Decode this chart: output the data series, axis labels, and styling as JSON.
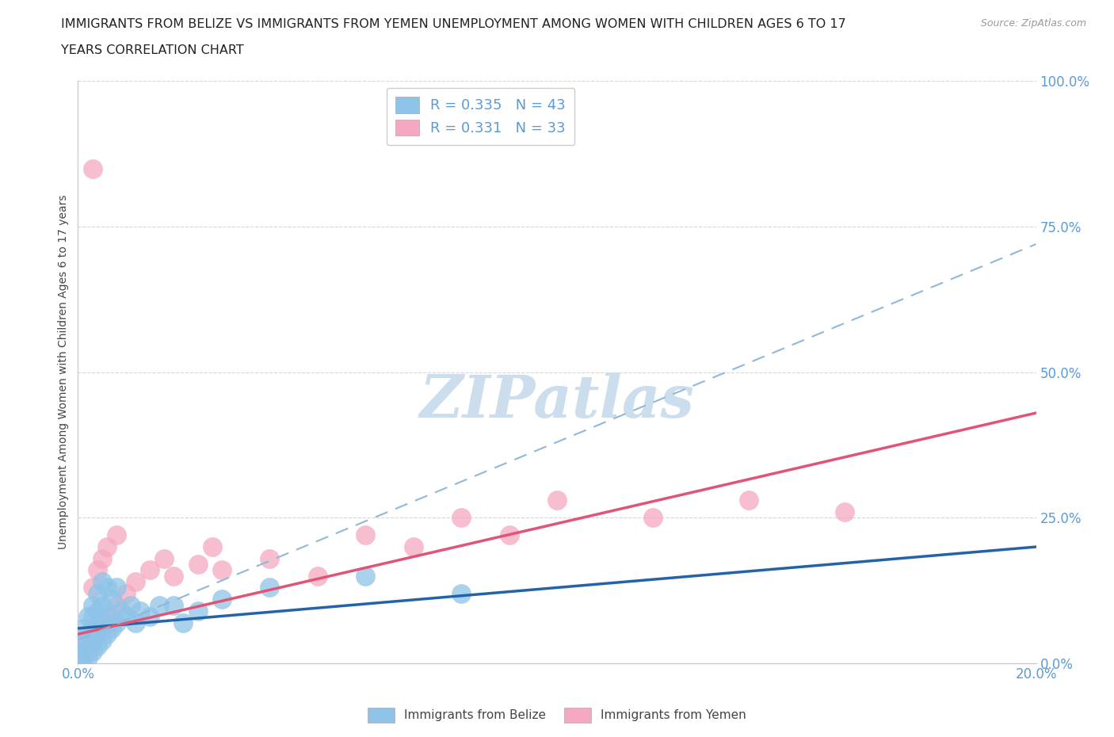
{
  "title_line1": "IMMIGRANTS FROM BELIZE VS IMMIGRANTS FROM YEMEN UNEMPLOYMENT AMONG WOMEN WITH CHILDREN AGES 6 TO 17",
  "title_line2": "YEARS CORRELATION CHART",
  "source_text": "Source: ZipAtlas.com",
  "ylabel": "Unemployment Among Women with Children Ages 6 to 17 years",
  "xlim": [
    0.0,
    0.2
  ],
  "ylim": [
    0.0,
    1.0
  ],
  "yticks": [
    0.0,
    0.25,
    0.5,
    0.75,
    1.0
  ],
  "belize_color": "#8ec4e8",
  "yemen_color": "#f5a8c0",
  "belize_line_color": "#2563a8",
  "yemen_line_color": "#e05575",
  "dashed_line_color": "#90b8d8",
  "belize_R": 0.335,
  "belize_N": 43,
  "yemen_R": 0.331,
  "yemen_N": 33,
  "background_color": "#ffffff",
  "grid_color": "#cccccc",
  "axis_color": "#cccccc",
  "label_color": "#5b9bd5",
  "watermark": "ZIPatlas",
  "watermark_color": "#ccdded",
  "belize_x": [
    0.001,
    0.001,
    0.001,
    0.001,
    0.001,
    0.002,
    0.002,
    0.002,
    0.002,
    0.003,
    0.003,
    0.003,
    0.003,
    0.003,
    0.004,
    0.004,
    0.004,
    0.004,
    0.005,
    0.005,
    0.005,
    0.005,
    0.006,
    0.006,
    0.006,
    0.007,
    0.007,
    0.008,
    0.008,
    0.009,
    0.01,
    0.011,
    0.012,
    0.013,
    0.015,
    0.017,
    0.02,
    0.022,
    0.025,
    0.03,
    0.04,
    0.06,
    0.08
  ],
  "belize_y": [
    0.0,
    0.01,
    0.02,
    0.04,
    0.06,
    0.01,
    0.03,
    0.05,
    0.08,
    0.02,
    0.04,
    0.06,
    0.08,
    0.1,
    0.03,
    0.06,
    0.09,
    0.12,
    0.04,
    0.07,
    0.1,
    0.14,
    0.05,
    0.08,
    0.13,
    0.06,
    0.11,
    0.07,
    0.13,
    0.09,
    0.08,
    0.1,
    0.07,
    0.09,
    0.08,
    0.1,
    0.1,
    0.07,
    0.09,
    0.11,
    0.13,
    0.15,
    0.12
  ],
  "yemen_x": [
    0.001,
    0.001,
    0.002,
    0.003,
    0.003,
    0.004,
    0.004,
    0.005,
    0.005,
    0.006,
    0.006,
    0.007,
    0.008,
    0.008,
    0.01,
    0.012,
    0.015,
    0.018,
    0.02,
    0.025,
    0.028,
    0.03,
    0.04,
    0.05,
    0.06,
    0.07,
    0.08,
    0.09,
    0.1,
    0.12,
    0.14,
    0.16,
    0.003
  ],
  "yemen_y": [
    0.0,
    0.03,
    0.02,
    0.04,
    0.13,
    0.05,
    0.16,
    0.06,
    0.18,
    0.07,
    0.2,
    0.08,
    0.1,
    0.22,
    0.12,
    0.14,
    0.16,
    0.18,
    0.15,
    0.17,
    0.2,
    0.16,
    0.18,
    0.15,
    0.22,
    0.2,
    0.25,
    0.22,
    0.28,
    0.25,
    0.28,
    0.26,
    0.85
  ],
  "belize_trend": [
    0.06,
    0.2
  ],
  "yemen_trend": [
    0.05,
    0.43
  ],
  "dashed_trend": [
    0.04,
    0.72
  ]
}
